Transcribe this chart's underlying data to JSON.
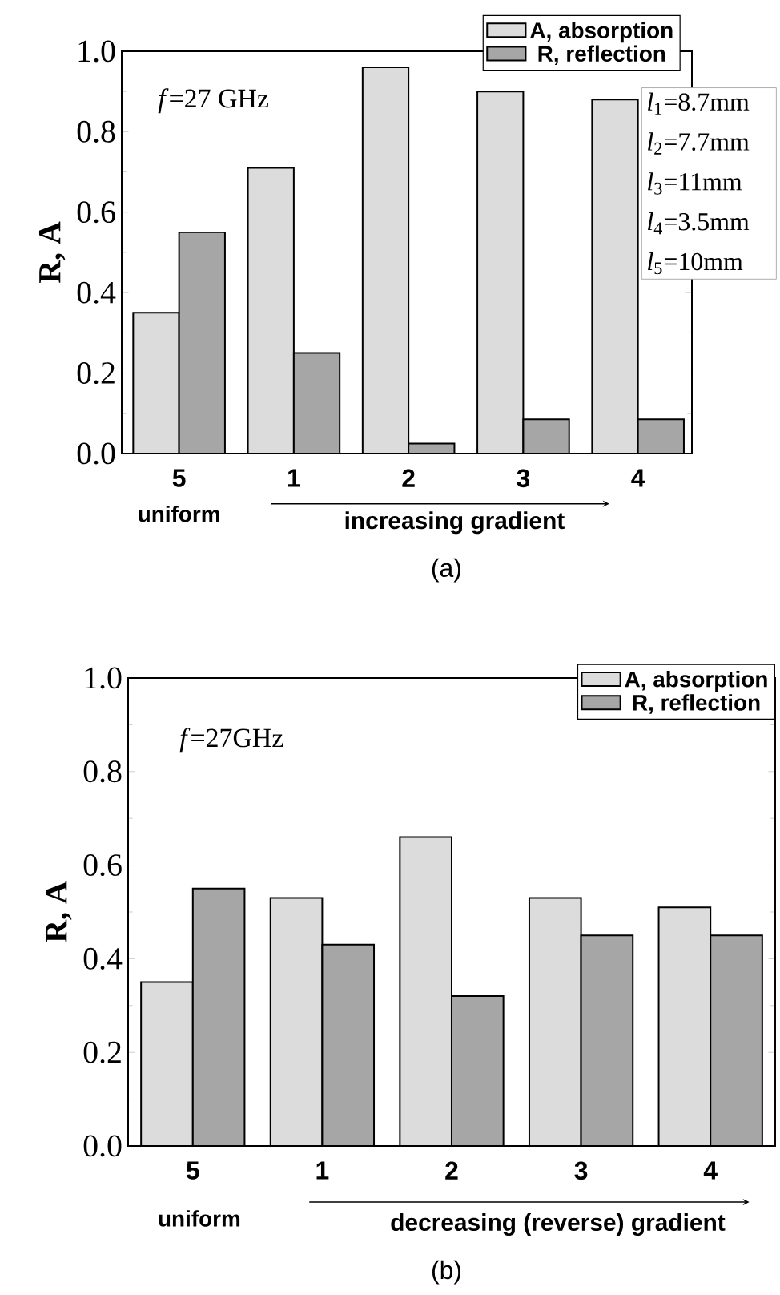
{
  "chart_data": [
    {
      "type": "bar",
      "categories": [
        "5",
        "1",
        "2",
        "3",
        "4"
      ],
      "ylabel": "R, A",
      "series": [
        {
          "name": "A, absorption",
          "color": "#dcdcdc",
          "values": [
            0.35,
            0.71,
            0.96,
            0.9,
            0.88
          ]
        },
        {
          "name": "R, reflection",
          "color": "#a6a6a6",
          "values": [
            0.55,
            0.25,
            0.025,
            0.085,
            0.085
          ]
        }
      ],
      "ylim": [
        0,
        1
      ],
      "yticks": [
        {
          "value": 0,
          "label": "0.0"
        },
        {
          "value": 0.2,
          "label": "0.2"
        },
        {
          "value": 0.4,
          "label": "0.4"
        },
        {
          "value": 0.6,
          "label": "0.6"
        },
        {
          "value": 0.8,
          "label": "0.8"
        },
        {
          "value": 1,
          "label": "1.0"
        }
      ],
      "legend": "top right",
      "grid": false,
      "annotations": [
        "*f*=27 GHz",
        "*l*$_{1}$=8.7mm",
        "*l*$_{2}$=7.7mm",
        "*l*$_{3}$=11mm",
        "*l*$_{4}$=3.5mm",
        "*l*$_{5}$=10mm",
        "uniform",
        "increasing gradient",
        "(a)"
      ]
    },
    {
      "type": "bar",
      "categories": [
        "5",
        "1",
        "2",
        "3",
        "4"
      ],
      "ylabel": "R, A",
      "series": [
        {
          "name": "A, absorption",
          "color": "#dcdcdc",
          "values": [
            0.35,
            0.53,
            0.66,
            0.53,
            0.51
          ]
        },
        {
          "name": "R, reflection",
          "color": "#a6a6a6",
          "values": [
            0.55,
            0.43,
            0.32,
            0.45,
            0.45
          ]
        }
      ],
      "ylim": [
        0,
        1
      ],
      "yticks": [
        {
          "value": 0,
          "label": "0.0"
        },
        {
          "value": 0.2,
          "label": "0.2"
        },
        {
          "value": 0.4,
          "label": "0.4"
        },
        {
          "value": 0.6,
          "label": "0.6"
        },
        {
          "value": 0.8,
          "label": "0.8"
        },
        {
          "value": 1,
          "label": "1.0"
        }
      ],
      "legend": "top right",
      "grid": false,
      "annotations": [
        "*f*=27GHz",
        "uniform",
        "decreasing (reverse) gradient",
        "(b)"
      ]
    }
  ]
}
